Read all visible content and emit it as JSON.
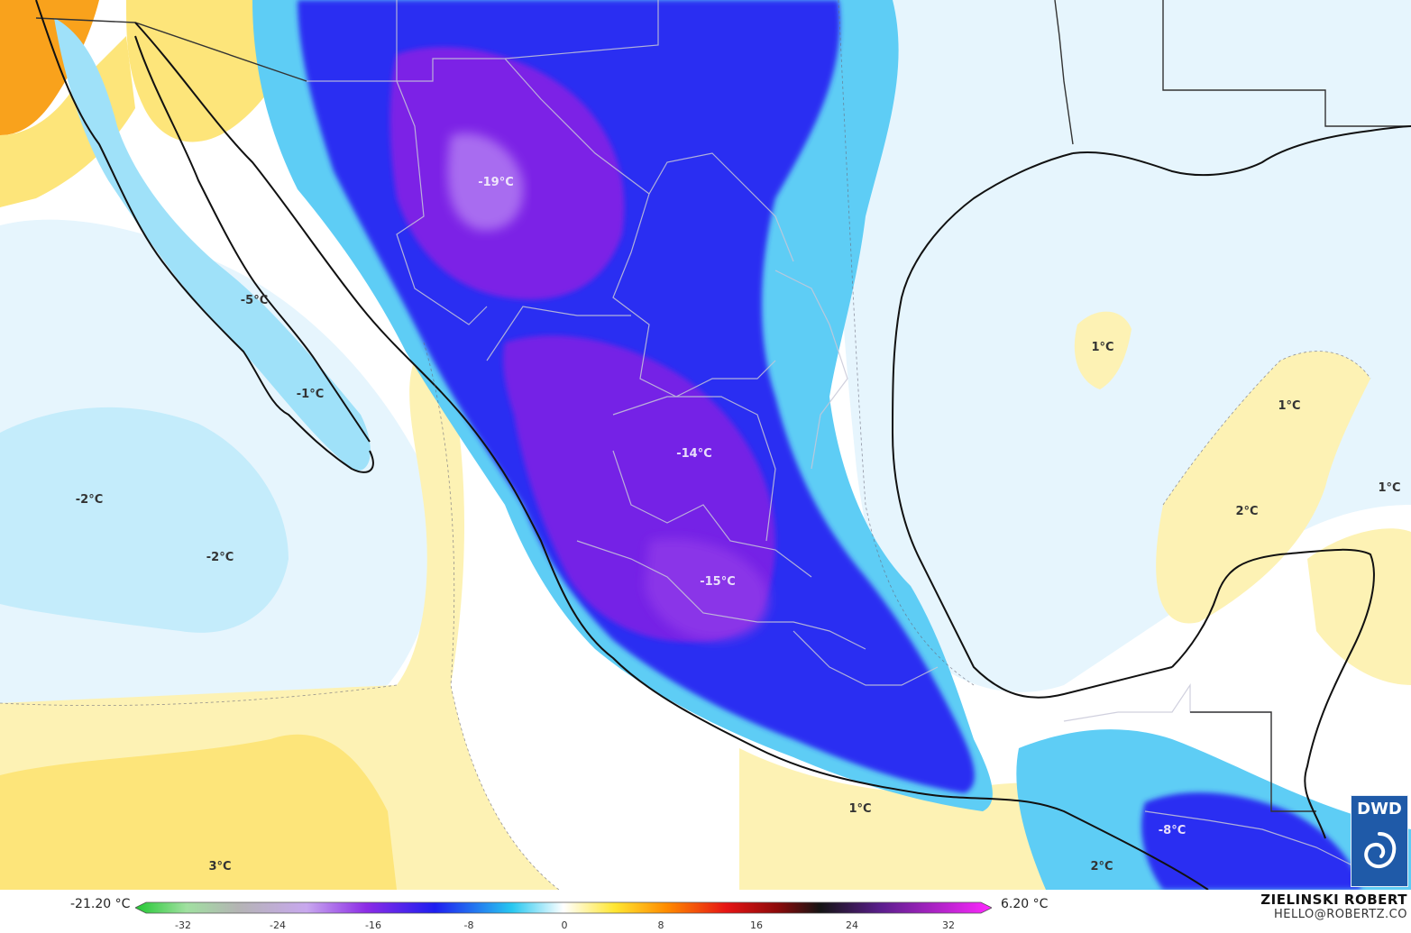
{
  "map": {
    "temperature_labels": [
      {
        "text": "-19°C"
      },
      {
        "text": "-14°C"
      },
      {
        "text": "-15°C"
      },
      {
        "text": "-5°C"
      },
      {
        "text": "-1°C"
      },
      {
        "text": "-2°C"
      },
      {
        "text": "-2°C"
      },
      {
        "text": "-8°C"
      },
      {
        "text": "1°C"
      },
      {
        "text": "1°C"
      },
      {
        "text": "1°C"
      },
      {
        "text": "2°C"
      },
      {
        "text": "1°C"
      },
      {
        "text": "2°C"
      },
      {
        "text": "3°C"
      }
    ]
  },
  "colorbar": {
    "min_label": "-21.20 °C",
    "max_label": "6.20 °C",
    "ticks": [
      "-32",
      "-24",
      "-16",
      "-8",
      "0",
      "8",
      "16",
      "24",
      "32"
    ],
    "colors": {
      "green": "#22c832",
      "gray": "#b4b4b4",
      "purple": "#8c2ce6",
      "blue": "#1e1ef0",
      "cyan": "#28c8f0",
      "white": "#ffffff",
      "yellow": "#ffe632",
      "orange": "#ff8c00",
      "red": "#e61414",
      "dark_red": "#8c0a0a",
      "black": "#141414",
      "dark_purple": "#5a1e8c",
      "magenta": "#ff28ff"
    }
  },
  "credit": {
    "name": "ZIELINSKI ROBERT",
    "email": "HELLO@ROBERTZ.CO"
  },
  "logo": {
    "text": "DWD",
    "icon": "spiral-icon"
  }
}
